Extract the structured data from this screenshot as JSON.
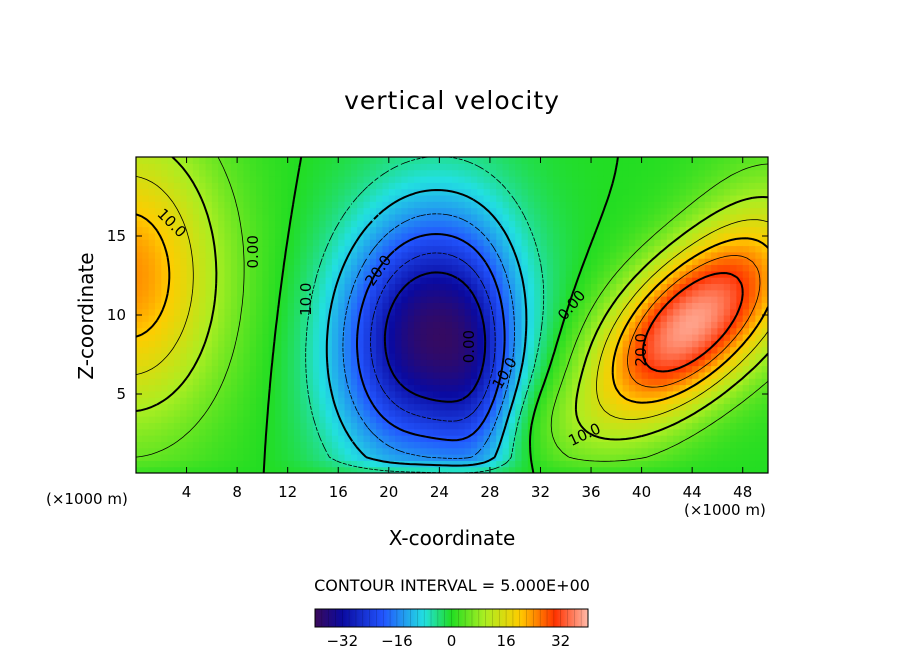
{
  "chart_data": {
    "type": "heatmap",
    "title": "vertical velocity",
    "xlabel": "X-coordinate",
    "ylabel": "Z-coordinate",
    "x_unit": "(×1000 m)",
    "x_ticks": [
      4,
      8,
      12,
      16,
      20,
      24,
      28,
      32,
      36,
      40,
      44,
      48
    ],
    "y_ticks": [
      5,
      10,
      15
    ],
    "xlim": [
      0,
      50
    ],
    "ylim": [
      0,
      20
    ],
    "contour_interval_text": "CONTOUR INTERVAL = 5.000E+00",
    "colorbar": {
      "ticks": [
        -32,
        -16,
        0,
        16,
        32
      ],
      "tick_labels": [
        "−32",
        "−16",
        "0",
        "16",
        "32"
      ],
      "range": [
        -40,
        40
      ]
    },
    "contour_labels": [
      {
        "text": "10.0",
        "x": 2.8,
        "y": 15.8,
        "angle": 45
      },
      {
        "text": "0.00",
        "x": 9.3,
        "y": 14.0,
        "angle": -90
      },
      {
        "text": "10.0",
        "x": 13.5,
        "y": 11.0,
        "angle": -90
      },
      {
        "text": "20.0",
        "x": 19.2,
        "y": 12.8,
        "angle": -55
      },
      {
        "text": "0.00",
        "x": 26.4,
        "y": 8.0,
        "angle": -90
      },
      {
        "text": "10.0",
        "x": 29.2,
        "y": 6.3,
        "angle": -60
      },
      {
        "text": "0.00",
        "x": 34.5,
        "y": 10.6,
        "angle": -50
      },
      {
        "text": "20.0",
        "x": 40.0,
        "y": 7.8,
        "angle": -90
      },
      {
        "text": "10.0",
        "x": 35.5,
        "y": 2.4,
        "angle": -25
      }
    ],
    "field_extrema": [
      {
        "x": 0.5,
        "z": 12.5,
        "w": 22
      },
      {
        "x": 23.0,
        "z": 8.5,
        "w": -36
      },
      {
        "x": 43.5,
        "z": 9.0,
        "w": 35
      }
    ]
  }
}
